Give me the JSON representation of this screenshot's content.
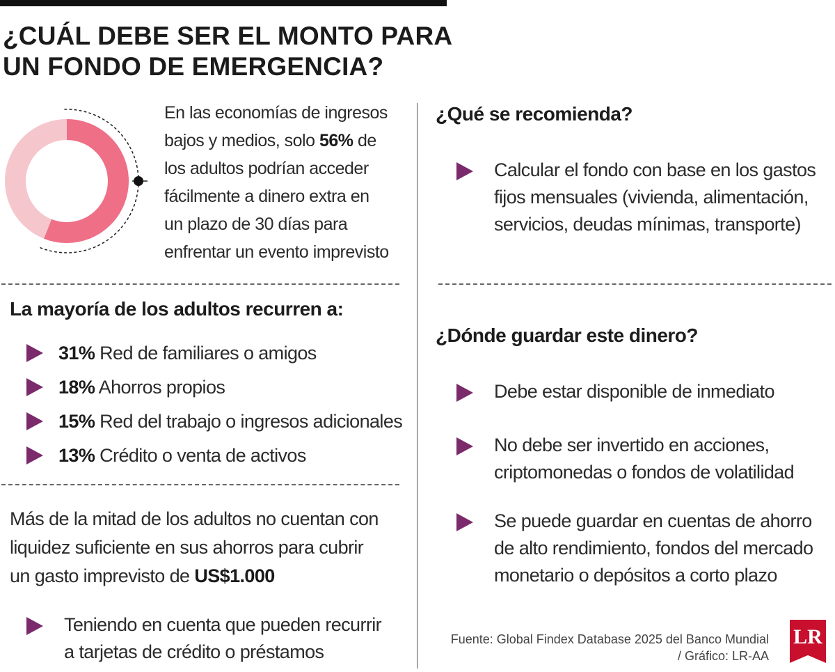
{
  "title": {
    "line1": "¿CUÁL DEBE SER EL MONTO PARA",
    "line2": "UN FONDO DE EMERGENCIA?"
  },
  "colors": {
    "accent_purple": "#7b2a6c",
    "donut_main": "#ee6f86",
    "donut_rest": "#f6c6cd",
    "logo_red": "#c8102e"
  },
  "donut": {
    "value_percent": 56
  },
  "intro": {
    "line1": "En las economías de ingresos",
    "line2_pre": "bajos y medios, solo ",
    "line2_bold": "56%",
    "line2_post": " de",
    "line3": "los adultos podrían acceder",
    "line4": "fácilmente a dinero extra en",
    "line5": "un plazo de 30 días para",
    "line6": "enfrentar un evento imprevisto"
  },
  "recurren": {
    "heading": "La mayoría de los adultos recurren a:",
    "items": [
      {
        "pct": "31%",
        "label": " Red de familiares o amigos"
      },
      {
        "pct": "18%",
        "label": " Ahorros propios"
      },
      {
        "pct": "15%",
        "label": " Red del trabajo o ingresos adicionales"
      },
      {
        "pct": "13%",
        "label": " Crédito o venta de activos"
      }
    ]
  },
  "liquidez": {
    "line1": "Más de la mitad de los adultos no cuentan con",
    "line2": "liquidez suficiente en sus ahorros para cubrir",
    "line3_pre": "un gasto imprevisto de ",
    "line3_bold": "US$1.000"
  },
  "credito": {
    "line1": "Teniendo en cuenta que pueden recurrir",
    "line2": "a tarjetas de crédito o préstamos"
  },
  "recomienda": {
    "heading": "¿Qué se recomienda?",
    "line1": "Calcular el fondo con base en los gastos",
    "line2": "fijos mensuales (vivienda, alimentación,",
    "line3": "servicios, deudas mínimas, transporte)"
  },
  "guardar": {
    "heading": "¿Dónde guardar este dinero?",
    "item1": {
      "line1": "Debe estar disponible de inmediato"
    },
    "item2": {
      "line1": "No debe ser invertido en acciones,",
      "line2": "criptomonedas o fondos de volatilidad"
    },
    "item3": {
      "line1": "Se puede guardar en cuentas de ahorro",
      "line2": "de alto rendimiento, fondos del mercado",
      "line3": "monetario o depósitos a corto plazo"
    }
  },
  "source": {
    "line1": "Fuente: Global Findex Database 2025 del Banco Mundial",
    "line2": "/ Gráfico: LR-AA"
  },
  "logo": {
    "text": "LR"
  }
}
